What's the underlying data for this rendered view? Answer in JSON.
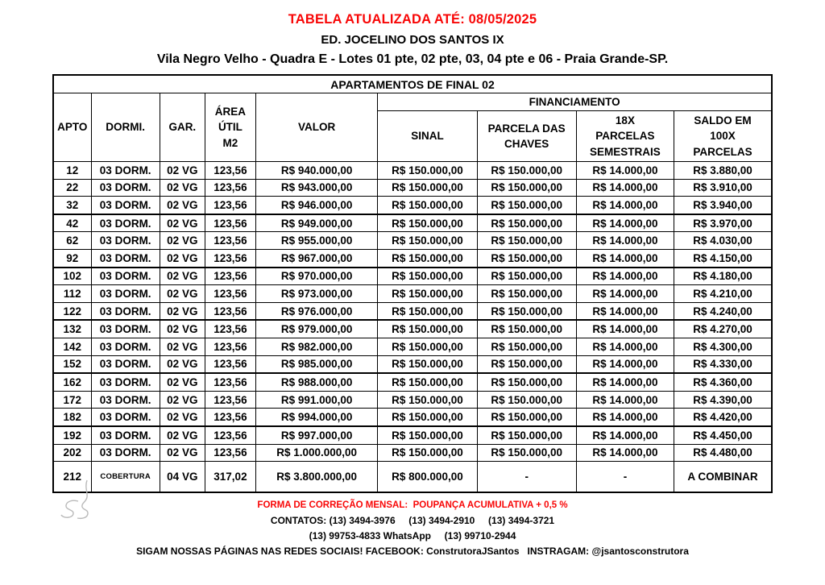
{
  "header": {
    "updated": "TABELA ATUALIZADA ATÉ: 08/05/2025",
    "building": "ED. JOCELINO DOS SANTOS IX",
    "address": "Vila Negro Velho - Quadra E - Lotes 01 pte, 02 pte, 03, 04 pte e 06 - Praia Grande-SP."
  },
  "table": {
    "caption": "APARTAMENTOS DE FINAL 02",
    "financing": "FINANCIAMENTO",
    "columns": [
      "APTO",
      "DORMI.",
      "GAR.",
      "ÁREA\nÚTIL\nM2",
      "VALOR",
      "SINAL",
      "PARCELA DAS\nCHAVES",
      "18X\nPARCELAS\nSEMESTRAIS",
      "SALDO EM\n100X\nPARCELAS"
    ],
    "rows": [
      [
        "12",
        "03 DORM.",
        "02 VG",
        "123,56",
        "R$ 940.000,00",
        "R$ 150.000,00",
        "R$ 150.000,00",
        "R$ 14.000,00",
        "R$ 3.880,00"
      ],
      [
        "22",
        "03 DORM.",
        "02 VG",
        "123,56",
        "R$ 943.000,00",
        "R$ 150.000,00",
        "R$ 150.000,00",
        "R$ 14.000,00",
        "R$ 3.910,00"
      ],
      [
        "32",
        "03 DORM.",
        "02 VG",
        "123,56",
        "R$ 946.000,00",
        "R$ 150.000,00",
        "R$ 150.000,00",
        "R$ 14.000,00",
        "R$ 3.940,00"
      ],
      [
        "42",
        "03 DORM.",
        "02 VG",
        "123,56",
        "R$ 949.000,00",
        "R$ 150.000,00",
        "R$ 150.000,00",
        "R$ 14.000,00",
        "R$ 3.970,00"
      ],
      [
        "62",
        "03 DORM.",
        "02 VG",
        "123,56",
        "R$ 955.000,00",
        "R$ 150.000,00",
        "R$ 150.000,00",
        "R$ 14.000,00",
        "R$ 4.030,00"
      ],
      [
        "92",
        "03 DORM.",
        "02 VG",
        "123,56",
        "R$ 967.000,00",
        "R$ 150.000,00",
        "R$ 150.000,00",
        "R$ 14.000,00",
        "R$ 4.150,00"
      ],
      [
        "102",
        "03 DORM.",
        "02 VG",
        "123,56",
        "R$ 970.000,00",
        "R$ 150.000,00",
        "R$ 150.000,00",
        "R$ 14.000,00",
        "R$ 4.180,00"
      ],
      [
        "112",
        "03 DORM.",
        "02 VG",
        "123,56",
        "R$ 973.000,00",
        "R$ 150.000,00",
        "R$ 150.000,00",
        "R$ 14.000,00",
        "R$ 4.210,00"
      ],
      [
        "122",
        "03 DORM.",
        "02 VG",
        "123,56",
        "R$ 976.000,00",
        "R$ 150.000,00",
        "R$ 150.000,00",
        "R$ 14.000,00",
        "R$ 4.240,00"
      ],
      [
        "132",
        "03 DORM.",
        "02 VG",
        "123,56",
        "R$ 979.000,00",
        "R$ 150.000,00",
        "R$ 150.000,00",
        "R$ 14.000,00",
        "R$ 4.270,00"
      ],
      [
        "142",
        "03 DORM.",
        "02 VG",
        "123,56",
        "R$ 982.000,00",
        "R$ 150.000,00",
        "R$ 150.000,00",
        "R$ 14.000,00",
        "R$ 4.300,00"
      ],
      [
        "152",
        "03 DORM.",
        "02 VG",
        "123,56",
        "R$ 985.000,00",
        "R$ 150.000,00",
        "R$ 150.000,00",
        "R$ 14.000,00",
        "R$ 4.330,00"
      ],
      [
        "162",
        "03 DORM.",
        "02 VG",
        "123,56",
        "R$ 988.000,00",
        "R$ 150.000,00",
        "R$ 150.000,00",
        "R$ 14.000,00",
        "R$ 4.360,00"
      ],
      [
        "172",
        "03 DORM.",
        "02 VG",
        "123,56",
        "R$ 991.000,00",
        "R$ 150.000,00",
        "R$ 150.000,00",
        "R$ 14.000,00",
        "R$ 4.390,00"
      ],
      [
        "182",
        "03 DORM.",
        "02 VG",
        "123,56",
        "R$ 994.000,00",
        "R$ 150.000,00",
        "R$ 150.000,00",
        "R$ 14.000,00",
        "R$ 4.420,00"
      ],
      [
        "192",
        "03 DORM.",
        "02 VG",
        "123,56",
        "R$ 997.000,00",
        "R$ 150.000,00",
        "R$ 150.000,00",
        "R$ 14.000,00",
        "R$ 4.450,00"
      ],
      [
        "202",
        "03 DORM.",
        "02 VG",
        "123,56",
        "R$ 1.000.000,00",
        "R$ 150.000,00",
        "R$ 150.000,00",
        "R$ 14.000,00",
        "R$ 4.480,00"
      ],
      [
        "212",
        "COBERTURA",
        "04 VG",
        "317,02",
        "R$ 3.800.000,00",
        "R$ 800.000,00",
        "-",
        "-",
        "A COMBINAR"
      ]
    ]
  },
  "footer": {
    "correction": "FORMA DE CORREÇÃO MENSAL:  POUPANÇA ACUMULATIVA + 0,5 %",
    "contacts": "CONTATOS: (13) 3494-3976     (13) 3494-2910     (13) 3494-3721",
    "whatsapp": "(13) 99753-4833 WhatsApp     (13) 99710-2944",
    "social": "SIGAM NOSSAS PÁGINAS NAS REDES SOCIAIS! FACEBOOK: ConstrutoraJSantos   INSTRAGAM: @jsantosconstrutora"
  },
  "colors": {
    "accent_red": "#f80606",
    "text": "#000000",
    "border": "#000000",
    "logo_gray": "#b9b9b9"
  }
}
